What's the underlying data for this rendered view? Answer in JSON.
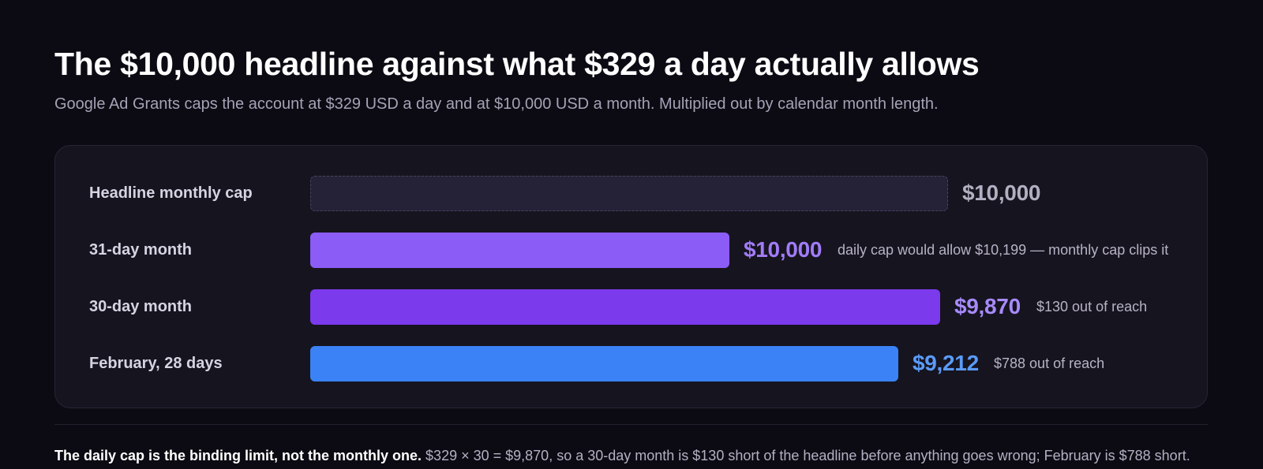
{
  "header": {
    "title": "The $10,000 headline against what $329 a day actually allows",
    "subtitle": "Google Ad Grants caps the account at $329 USD a day and at $10,000 USD a month. Multiplied out by calendar month length."
  },
  "colors": {
    "headline_bar": "#252136",
    "headline_value": "#b3afc2",
    "purple_light": "#8b5cf6",
    "purple_light_text": "#a17cf7",
    "purple": "#7c3aed",
    "purple_text": "#a78bfa",
    "blue": "#3b82f6",
    "blue_text": "#5b9bf8"
  },
  "chart_data": {
    "type": "bar",
    "orientation": "horizontal",
    "unit": "USD",
    "categories": [
      "Headline monthly cap",
      "31-day month",
      "30-day month",
      "February, 28 days"
    ],
    "values": [
      10000,
      10000,
      9870,
      9212
    ],
    "value_labels": [
      "$10,000",
      "$10,000",
      "$9,870",
      "$9,212"
    ],
    "annotations": [
      "",
      "daily cap would allow $10,199 — monthly cap clips it",
      "$130 out of reach",
      "$788 out of reach"
    ]
  },
  "footer": {
    "lead": "The daily cap is the binding limit, not the monthly one.",
    "body": "$329 × 30 = $9,870, so a 30-day month is $130 short of the headline before anything goes wrong; February is $788 short."
  }
}
